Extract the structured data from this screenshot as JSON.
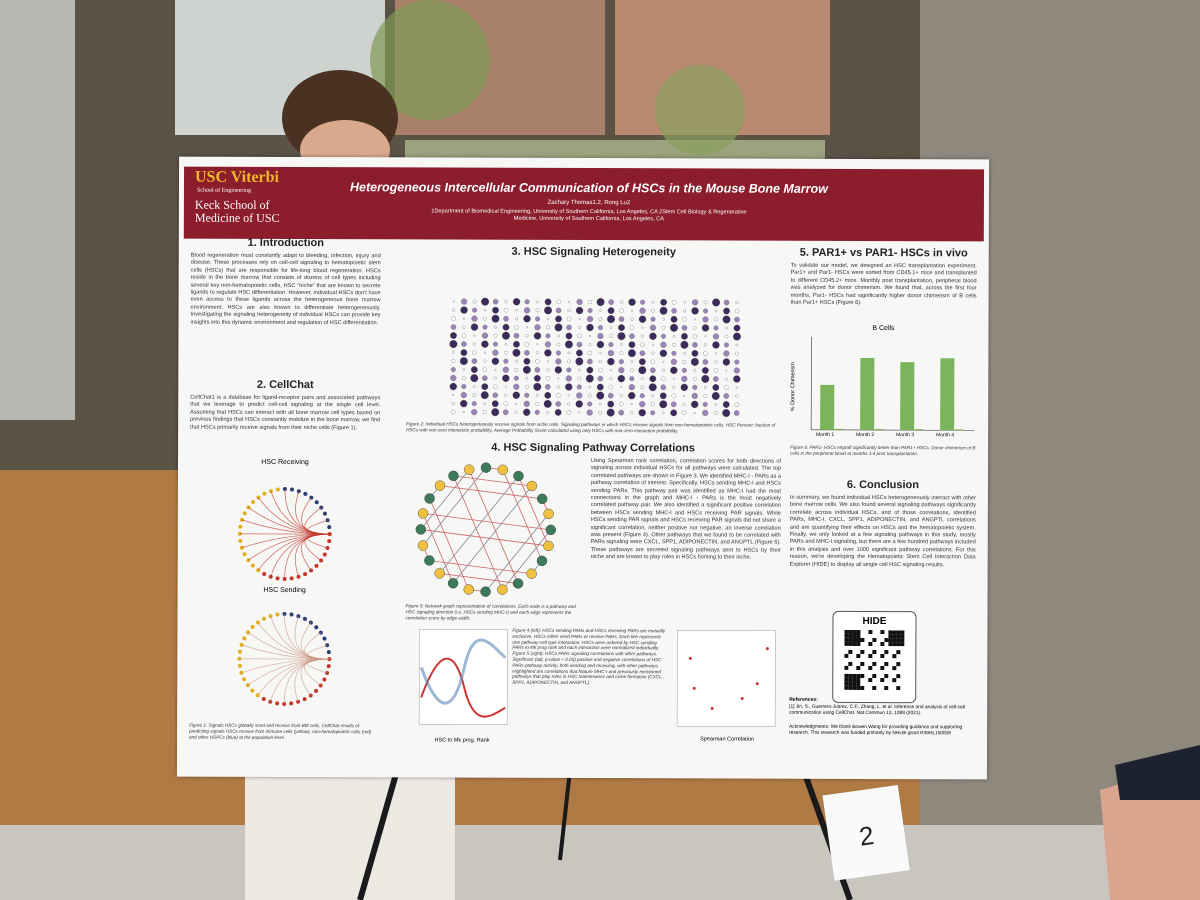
{
  "header": {
    "logo_usc": "USC Viterbi",
    "logo_usc_sub": "School of Engineering",
    "logo_keck": "Keck School of Medicine of USC",
    "title": "Heterogeneous Intercellular Communication of HSCs in the Mouse Bone Marrow",
    "authors": "Zachary Thomas1,2, Rong Lu2",
    "affiliation": "1Department of Biomedical Engineering, University of Southern California, Los Angeles, CA 2Stem Cell Biology & Regenerative Medicine, University of Southern California, Los Angeles, CA"
  },
  "sections": [
    {
      "heading": "1. Introduction",
      "text": "Blood regeneration must constantly adapt to bleeding, infection, injury and disease. These processes rely on cell-cell signaling to hematopoietic stem cells (HSCs) that are responsible for life-long blood regeneration. HSCs reside in the bone marrow that consists of dozens of cell types including several key non-hematopoietic cells, HSC \"niche\" that are known to secrete ligands to regulate HSC differentiation. However, individual HSCs don't have even access to these ligands across the heterogeneous bone marrow environment. HSCs are also known to differentiate heterogeneously. Investigating the signaling heterogeneity of individual HSCs can provide key insights into this dynamic environment and regulation of HSC differentiation."
    },
    {
      "heading": "2. CellChat",
      "text": "CellChat1 is a database for ligand-receptor pairs and associated pathways that we leverage to predict cell-cell signaling at the single cell level. Assuming that HSCs can interact with all bone marrow cell types based on previous findings that HSCs constantly mobilize in the bone marrow, we find that HSCs primarily receive signals from their niche cells (Figure 1).",
      "figure_titles": [
        "HSC Receiving",
        "HSC Sending"
      ],
      "caption": "Figure 1: Signals HSCs globally send and receive from BM cells. CellChat results of predicting signals HSCs receive from immune cells (yellow), non-hematopoietic cells (red) and other HSPCs (blue) at the population level"
    },
    {
      "heading": "3. HSC Signaling Heterogeneity",
      "caption": "Figure 2: Individual HSCs heterogeneously receive signals from niche cells. Signaling pathways in which HSCs receive signals from non-hematopoietic cells. HSC Percent: fraction of HSCs with non-zero interaction probability. Average Probability Score calculated using only HSCs with non-zero interaction probability."
    },
    {
      "heading": "4. HSC Signaling Pathway Correlations",
      "text": "Using Spearman rank correlation, correlation scores for both directions of signaling across individual HSCs for all pathways were calculated. The top correlated pathways are shown in Figure 3. We identified MHC-I - PARs as a pathway correlation of interest. Specifically, HSCs sending MHC-I and HSCs sending PARs. This pathway pair was identified as MHC-I had the most connections in the graph and MHC-I - PARs is the most negatively correlated pathway pair. We also identified a significant positive correlation between HSCs sending MHC-I and HSCs receiving PAR signals. While HSCs sending PAR signals and HSCs receiving PAR signals did not share a significant correlation, neither positive nor negative, an inverse correlation was present (Figure 4). Other pathways that we found to be correlated with PARs signaling were CXCL, SPP1, ADIPONECTIN, and ANGPTL (Figure 5). These pathways are secreted signaling pathways sent to HSCs by their niche and are known to play roles in HSCs homing to their niche.",
      "caption3": "Figure 3: Network graph representation of correlations. Each node is a pathway and HSC signaling direction (i.e. HSCs sending MHC-I) and each edge represents the correlation score by edge width.",
      "caption4": "Figure 4 (left): HSCs sending PARs and HSCs receiving PARs are mutually exclusive. HSCs either send PARs or receive PARs. Each line represents one pathway-cell type interaction. HSCs were ordered by HSC sending PARs to Mk prog rank and each interaction were normalized individually. Figure 5 (right): HSCs PARs signaling correlations with other pathways. Significant (adj. p-value < 0.05) positive and negative correlations of HSC PARs pathway activity, both sending and receiving, with other pathways. Highlighted are correlations that feature MHC-I and previously mentioned pathways that play roles in HSC maintenance and niche formation (CXCL, SPP1, ADIPONECTIN, and ANGPTL).",
      "xlabel4": "HSC to Mk prog. Rank",
      "xlabel5": "Spearman Correlation"
    },
    {
      "heading": "5. PAR1+ vs PAR1- HSCs in vivo",
      "text": "To validate our model, we designed an HSC transplantation experiment. Par1+ and Par1- HSCs were sorted from CD45.1+ mice and transplanted to different CD45.2+ mice. Monthly post transplantation, peripheral blood was analyzed for donor chimerism. We found that, across the first four months, Par1- HSCs had significantly higher donor chimerism of B cells than Par1+ HSCs (Figure 6).",
      "chart_title": "B Cells",
      "ylabel": "% Donor Chimerism",
      "months": [
        "Month 1",
        "Month 2",
        "Month 3",
        "Month 4"
      ],
      "caption": "Figure 6: PAR1- HSCs engraft significantly better than PAR1+ HSCs. Donor chimerism of B cells in the peripheral blood at months 1-4 post transplantation."
    },
    {
      "heading": "6. Conclusion",
      "text": "In summary, we found individual HSCs heterogeneously interact with other bone marrow cells. We also found several signaling pathways significantly correlate across individual HSCs, and of those correlations, identified PARs, MHC-I, CXCL, SPP1, ADIPONECTIN, and ANGPTL correlations and are quantifying their effects on HSCs and the hematopoietic system. Finally, we only looked at a few signaling pathways in this study, mostly PARs and MHC-I signaling, but there are a few hundred pathways included in this analysis and over 1000 significant pathway correlations. For this reason, we're developing the Hematopoietic Stem Cell Interaction Data Explorer (HIDE) to display all single cell HSC signaling results.",
      "hide": "HIDE",
      "references_heading": "References:",
      "references": "[1] Jin, S., Guerrero-Juarez, C.F., Zhang, L. et al. Inference and analysis of cell-cell communication using CellChat. Nat Commun 12, 1088 (2021).",
      "acknowledgments": "Acknowledgments: We thank Bowen Wang for providing guidance and supporting research. This research was funded primarily by NHLBI grant R38HL150826"
    }
  ],
  "card": "2"
}
